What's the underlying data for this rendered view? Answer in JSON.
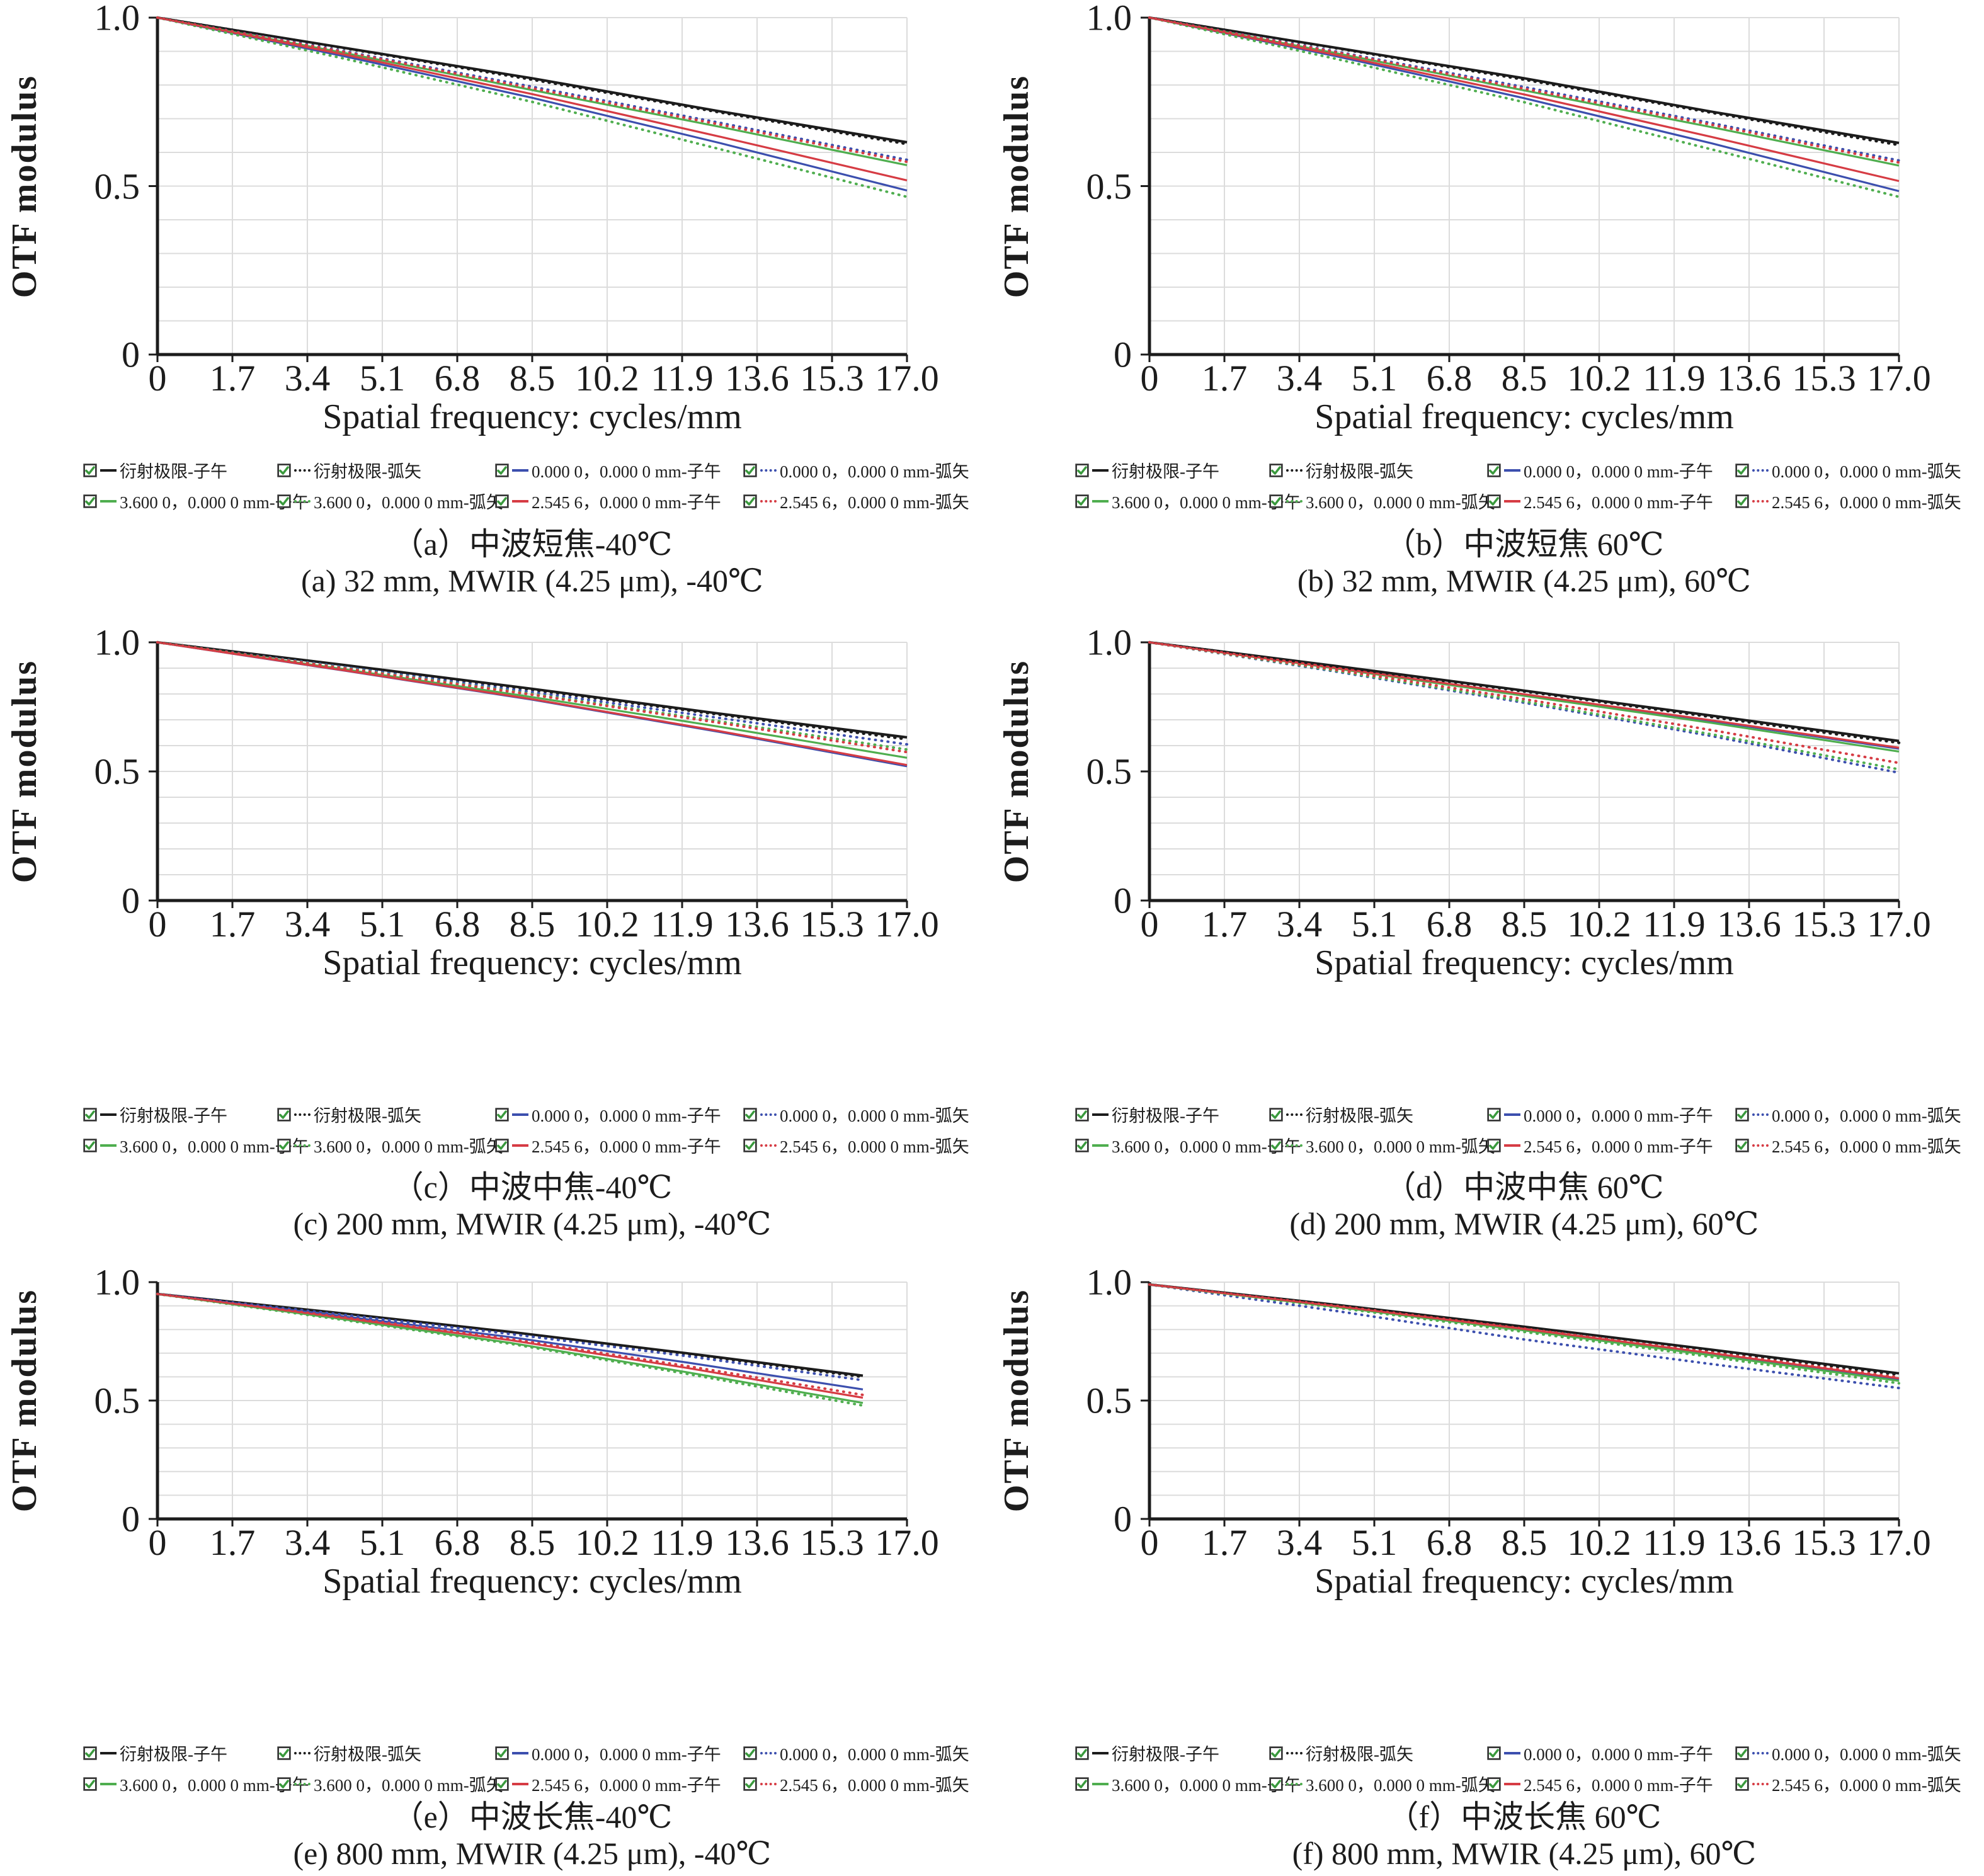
{
  "colors": {
    "black": "#1c1c1c",
    "blue": "#3c4fae",
    "green": "#4fae4f",
    "red": "#d63c44",
    "check_green": "#3a9a3d",
    "checkbox_border": "#333333",
    "grid": "#dcdcdc",
    "axis": "#1c1c1c"
  },
  "axis": {
    "y_label": "OTF modulus",
    "x_label": "Spatial frequency: cycles/mm",
    "y_ticks": [
      "1.0",
      "0.5",
      "0"
    ],
    "x_ticks": [
      "0",
      "1.7",
      "3.4",
      "5.1",
      "6.8",
      "8.5",
      "10.2",
      "11.9",
      "13.6",
      "15.3",
      "17.0"
    ],
    "x_min": 0,
    "x_max": 17,
    "y_min": 0,
    "y_max": 1.0,
    "grid": "on"
  },
  "legend": {
    "position": "below-axis",
    "items": [
      {
        "label": "衍射极限-子午",
        "color": "black",
        "dash": false,
        "checked": true
      },
      {
        "label": "衍射极限-弧矢",
        "color": "black",
        "dash": true,
        "checked": true
      },
      {
        "label": "0.000 0，0.000 0 mm-子午",
        "color": "blue",
        "dash": false,
        "checked": true
      },
      {
        "label": "0.000 0，0.000 0 mm-弧矢",
        "color": "blue",
        "dash": true,
        "checked": true
      },
      {
        "label": "3.600 0，0.000 0 mm-子午",
        "color": "green",
        "dash": false,
        "checked": true
      },
      {
        "label": "3.600 0，0.000 0 mm-弧矢",
        "color": "green",
        "dash": true,
        "checked": true
      },
      {
        "label": "2.545 6，0.000 0 mm-子午",
        "color": "red",
        "dash": false,
        "checked": true
      },
      {
        "label": "2.545 6，0.000 0 mm-弧矢",
        "color": "red",
        "dash": true,
        "checked": true
      }
    ]
  },
  "chart_data": [
    {
      "type": "line",
      "id": "a",
      "row": 1,
      "caption_cn": "（a）中波短焦-40℃",
      "caption_en": "(a) 32 mm, MWIR (4.25 μm), -40℃",
      "x": [
        0,
        4.25,
        8.5,
        12.75,
        17
      ],
      "series": [
        {
          "name": "衍射极限-子午",
          "color": "black",
          "dash": false,
          "values": [
            1.0,
            0.91,
            0.82,
            0.722,
            0.63
          ]
        },
        {
          "name": "衍射极限-弧矢",
          "color": "black",
          "dash": true,
          "values": [
            1.0,
            0.909,
            0.816,
            0.719,
            0.625
          ]
        },
        {
          "name": "0.000 0，0.000 0 mm-子午",
          "color": "blue",
          "dash": false,
          "values": [
            1.0,
            0.885,
            0.762,
            0.628,
            0.487
          ]
        },
        {
          "name": "0.000 0，0.000 0 mm-弧矢",
          "color": "blue",
          "dash": true,
          "values": [
            1.0,
            0.9,
            0.795,
            0.688,
            0.578
          ]
        },
        {
          "name": "3.600 0，0.000 0 mm-子午",
          "color": "green",
          "dash": false,
          "values": [
            1.0,
            0.895,
            0.785,
            0.676,
            0.562
          ]
        },
        {
          "name": "3.600 0，0.000 0 mm-弧矢",
          "color": "green",
          "dash": true,
          "values": [
            1.0,
            0.878,
            0.75,
            0.61,
            0.468
          ]
        },
        {
          "name": "2.545 6，0.000 0 mm-子午",
          "color": "red",
          "dash": false,
          "values": [
            1.0,
            0.89,
            0.773,
            0.647,
            0.517
          ]
        },
        {
          "name": "2.545 6，0.000 0 mm-弧矢",
          "color": "red",
          "dash": true,
          "values": [
            1.0,
            0.898,
            0.79,
            0.683,
            0.572
          ]
        }
      ]
    },
    {
      "type": "line",
      "id": "b",
      "row": 1,
      "caption_cn": "（b）中波短焦 60℃",
      "caption_en": "(b) 32 mm, MWIR (4.25 μm), 60℃",
      "x": [
        0,
        4.25,
        8.5,
        12.75,
        17
      ],
      "series": [
        {
          "name": "衍射极限-子午",
          "color": "black",
          "dash": false,
          "values": [
            1.0,
            0.91,
            0.82,
            0.721,
            0.628
          ]
        },
        {
          "name": "衍射极限-弧矢",
          "color": "black",
          "dash": true,
          "values": [
            1.0,
            0.909,
            0.816,
            0.718,
            0.622
          ]
        },
        {
          "name": "0.000 0，0.000 0 mm-子午",
          "color": "blue",
          "dash": false,
          "values": [
            1.0,
            0.885,
            0.761,
            0.627,
            0.485
          ]
        },
        {
          "name": "0.000 0，0.000 0 mm-弧矢",
          "color": "blue",
          "dash": true,
          "values": [
            1.0,
            0.899,
            0.794,
            0.687,
            0.576
          ]
        },
        {
          "name": "3.600 0，0.000 0 mm-子午",
          "color": "green",
          "dash": false,
          "values": [
            1.0,
            0.894,
            0.784,
            0.675,
            0.561
          ]
        },
        {
          "name": "3.600 0，0.000 0 mm-弧矢",
          "color": "green",
          "dash": true,
          "values": [
            1.0,
            0.877,
            0.749,
            0.609,
            0.468
          ]
        },
        {
          "name": "2.545 6，0.000 0 mm-子午",
          "color": "red",
          "dash": false,
          "values": [
            1.0,
            0.889,
            0.772,
            0.646,
            0.515
          ]
        },
        {
          "name": "2.545 6，0.000 0 mm-弧矢",
          "color": "red",
          "dash": true,
          "values": [
            1.0,
            0.897,
            0.789,
            0.682,
            0.57
          ]
        }
      ]
    },
    {
      "type": "line",
      "id": "c",
      "row": 2,
      "caption_cn": "（c）中波中焦-40℃",
      "caption_en": "(c) 200 mm, MWIR (4.25 μm), -40℃",
      "x": [
        0,
        4.25,
        8.5,
        12.75,
        17
      ],
      "series": [
        {
          "name": "衍射极限-子午",
          "color": "black",
          "dash": false,
          "values": [
            1.0,
            0.912,
            0.82,
            0.724,
            0.632
          ]
        },
        {
          "name": "衍射极限-弧矢",
          "color": "black",
          "dash": true,
          "values": [
            1.0,
            0.91,
            0.816,
            0.72,
            0.625
          ]
        },
        {
          "name": "0.000 0，0.000 0 mm-子午",
          "color": "blue",
          "dash": false,
          "values": [
            1.0,
            0.89,
            0.778,
            0.653,
            0.52
          ]
        },
        {
          "name": "0.000 0，0.000 0 mm-弧矢",
          "color": "blue",
          "dash": true,
          "values": [
            1.0,
            0.904,
            0.807,
            0.707,
            0.605
          ]
        },
        {
          "name": "3.600 0，0.000 0 mm-子午",
          "color": "green",
          "dash": false,
          "values": [
            1.0,
            0.895,
            0.788,
            0.673,
            0.553
          ]
        },
        {
          "name": "3.600 0，0.000 0 mm-弧矢",
          "color": "green",
          "dash": true,
          "values": [
            1.0,
            0.901,
            0.8,
            0.694,
            0.585
          ]
        },
        {
          "name": "2.545 6，0.000 0 mm-子午",
          "color": "red",
          "dash": false,
          "values": [
            1.0,
            0.891,
            0.78,
            0.656,
            0.525
          ]
        },
        {
          "name": "2.545 6，0.000 0 mm-弧矢",
          "color": "red",
          "dash": true,
          "values": [
            1.0,
            0.899,
            0.797,
            0.688,
            0.575
          ]
        }
      ]
    },
    {
      "type": "line",
      "id": "d",
      "row": 2,
      "caption_cn": "（d）中波中焦 60℃",
      "caption_en": "(d) 200 mm, MWIR (4.25 μm), 60℃",
      "x": [
        0,
        4.25,
        8.5,
        12.75,
        17
      ],
      "series": [
        {
          "name": "衍射极限-子午",
          "color": "black",
          "dash": false,
          "values": [
            1.0,
            0.908,
            0.813,
            0.716,
            0.618
          ]
        },
        {
          "name": "衍射极限-弧矢",
          "color": "black",
          "dash": true,
          "values": [
            1.0,
            0.906,
            0.81,
            0.711,
            0.611
          ]
        },
        {
          "name": "0.000 0，0.000 0 mm-子午",
          "color": "blue",
          "dash": false,
          "values": [
            1.0,
            0.9,
            0.797,
            0.695,
            0.588
          ]
        },
        {
          "name": "0.000 0，0.000 0 mm-弧矢",
          "color": "blue",
          "dash": true,
          "values": [
            1.0,
            0.886,
            0.766,
            0.637,
            0.495
          ]
        },
        {
          "name": "3.600 0，0.000 0 mm-子午",
          "color": "green",
          "dash": false,
          "values": [
            1.0,
            0.898,
            0.793,
            0.688,
            0.577
          ]
        },
        {
          "name": "3.600 0，0.000 0 mm-弧矢",
          "color": "green",
          "dash": true,
          "values": [
            1.0,
            0.889,
            0.771,
            0.644,
            0.508
          ]
        },
        {
          "name": "2.545 6，0.000 0 mm-子午",
          "color": "red",
          "dash": false,
          "values": [
            1.0,
            0.901,
            0.799,
            0.698,
            0.592
          ]
        },
        {
          "name": "2.545 6，0.000 0 mm-弧矢",
          "color": "red",
          "dash": true,
          "values": [
            1.0,
            0.893,
            0.78,
            0.66,
            0.533
          ]
        }
      ]
    },
    {
      "type": "line",
      "id": "e",
      "row": 3,
      "caption_cn": "（e）中波长焦-40℃",
      "caption_en": "(e) 800 mm, MWIR (4.25 μm), -40℃",
      "x": [
        0,
        4,
        8,
        12,
        16
      ],
      "series": [
        {
          "name": "衍射极限-子午",
          "color": "black",
          "dash": false,
          "values": [
            0.95,
            0.872,
            0.79,
            0.7,
            0.605
          ]
        },
        {
          "name": "衍射极限-弧矢",
          "color": "black",
          "dash": true,
          "values": [
            0.95,
            0.87,
            0.787,
            0.697,
            0.6
          ]
        },
        {
          "name": "0.000 0，0.000 0 mm-子午",
          "color": "blue",
          "dash": false,
          "values": [
            0.95,
            0.861,
            0.768,
            0.661,
            0.547
          ]
        },
        {
          "name": "0.000 0，0.000 0 mm-弧矢",
          "color": "blue",
          "dash": true,
          "values": [
            0.95,
            0.867,
            0.781,
            0.688,
            0.586
          ]
        },
        {
          "name": "3.600 0，0.000 0 mm-子午",
          "color": "green",
          "dash": false,
          "values": [
            0.95,
            0.849,
            0.744,
            0.62,
            0.49
          ]
        },
        {
          "name": "3.600 0，0.000 0 mm-弧矢",
          "color": "green",
          "dash": true,
          "values": [
            0.95,
            0.846,
            0.74,
            0.613,
            0.479
          ]
        },
        {
          "name": "2.545 6，0.000 0 mm-子午",
          "color": "red",
          "dash": false,
          "values": [
            0.95,
            0.854,
            0.755,
            0.638,
            0.512
          ]
        },
        {
          "name": "2.545 6，0.000 0 mm-弧矢",
          "color": "red",
          "dash": true,
          "values": [
            0.95,
            0.857,
            0.76,
            0.646,
            0.524
          ]
        }
      ]
    },
    {
      "type": "line",
      "id": "f",
      "row": 3,
      "caption_cn": "（f）中波长焦 60℃",
      "caption_en": "(f) 800 mm, MWIR (4.25 μm), 60℃",
      "x": [
        0,
        4.25,
        8.5,
        12.75,
        17
      ],
      "series": [
        {
          "name": "衍射极限-子午",
          "color": "black",
          "dash": false,
          "values": [
            0.99,
            0.904,
            0.812,
            0.715,
            0.615
          ]
        },
        {
          "name": "衍射极限-弧矢",
          "color": "black",
          "dash": true,
          "values": [
            0.99,
            0.902,
            0.809,
            0.711,
            0.609
          ]
        },
        {
          "name": "0.000 0，0.000 0 mm-子午",
          "color": "blue",
          "dash": false,
          "values": [
            0.99,
            0.897,
            0.8,
            0.697,
            0.589
          ]
        },
        {
          "name": "0.000 0，0.000 0 mm-弧矢",
          "color": "blue",
          "dash": true,
          "values": [
            0.99,
            0.878,
            0.758,
            0.654,
            0.553
          ]
        },
        {
          "name": "3.600 0，0.000 0 mm-子午",
          "color": "green",
          "dash": false,
          "values": [
            0.99,
            0.895,
            0.796,
            0.691,
            0.583
          ]
        },
        {
          "name": "3.600 0，0.000 0 mm-弧矢",
          "color": "green",
          "dash": true,
          "values": [
            0.99,
            0.892,
            0.79,
            0.684,
            0.573
          ]
        },
        {
          "name": "2.545 6，0.000 0 mm-子午",
          "color": "red",
          "dash": false,
          "values": [
            0.99,
            0.898,
            0.802,
            0.7,
            0.594
          ]
        },
        {
          "name": "2.545 6，0.000 0 mm-弧矢",
          "color": "red",
          "dash": true,
          "values": [
            0.99,
            0.9,
            0.804,
            0.703,
            0.598
          ]
        }
      ]
    }
  ]
}
